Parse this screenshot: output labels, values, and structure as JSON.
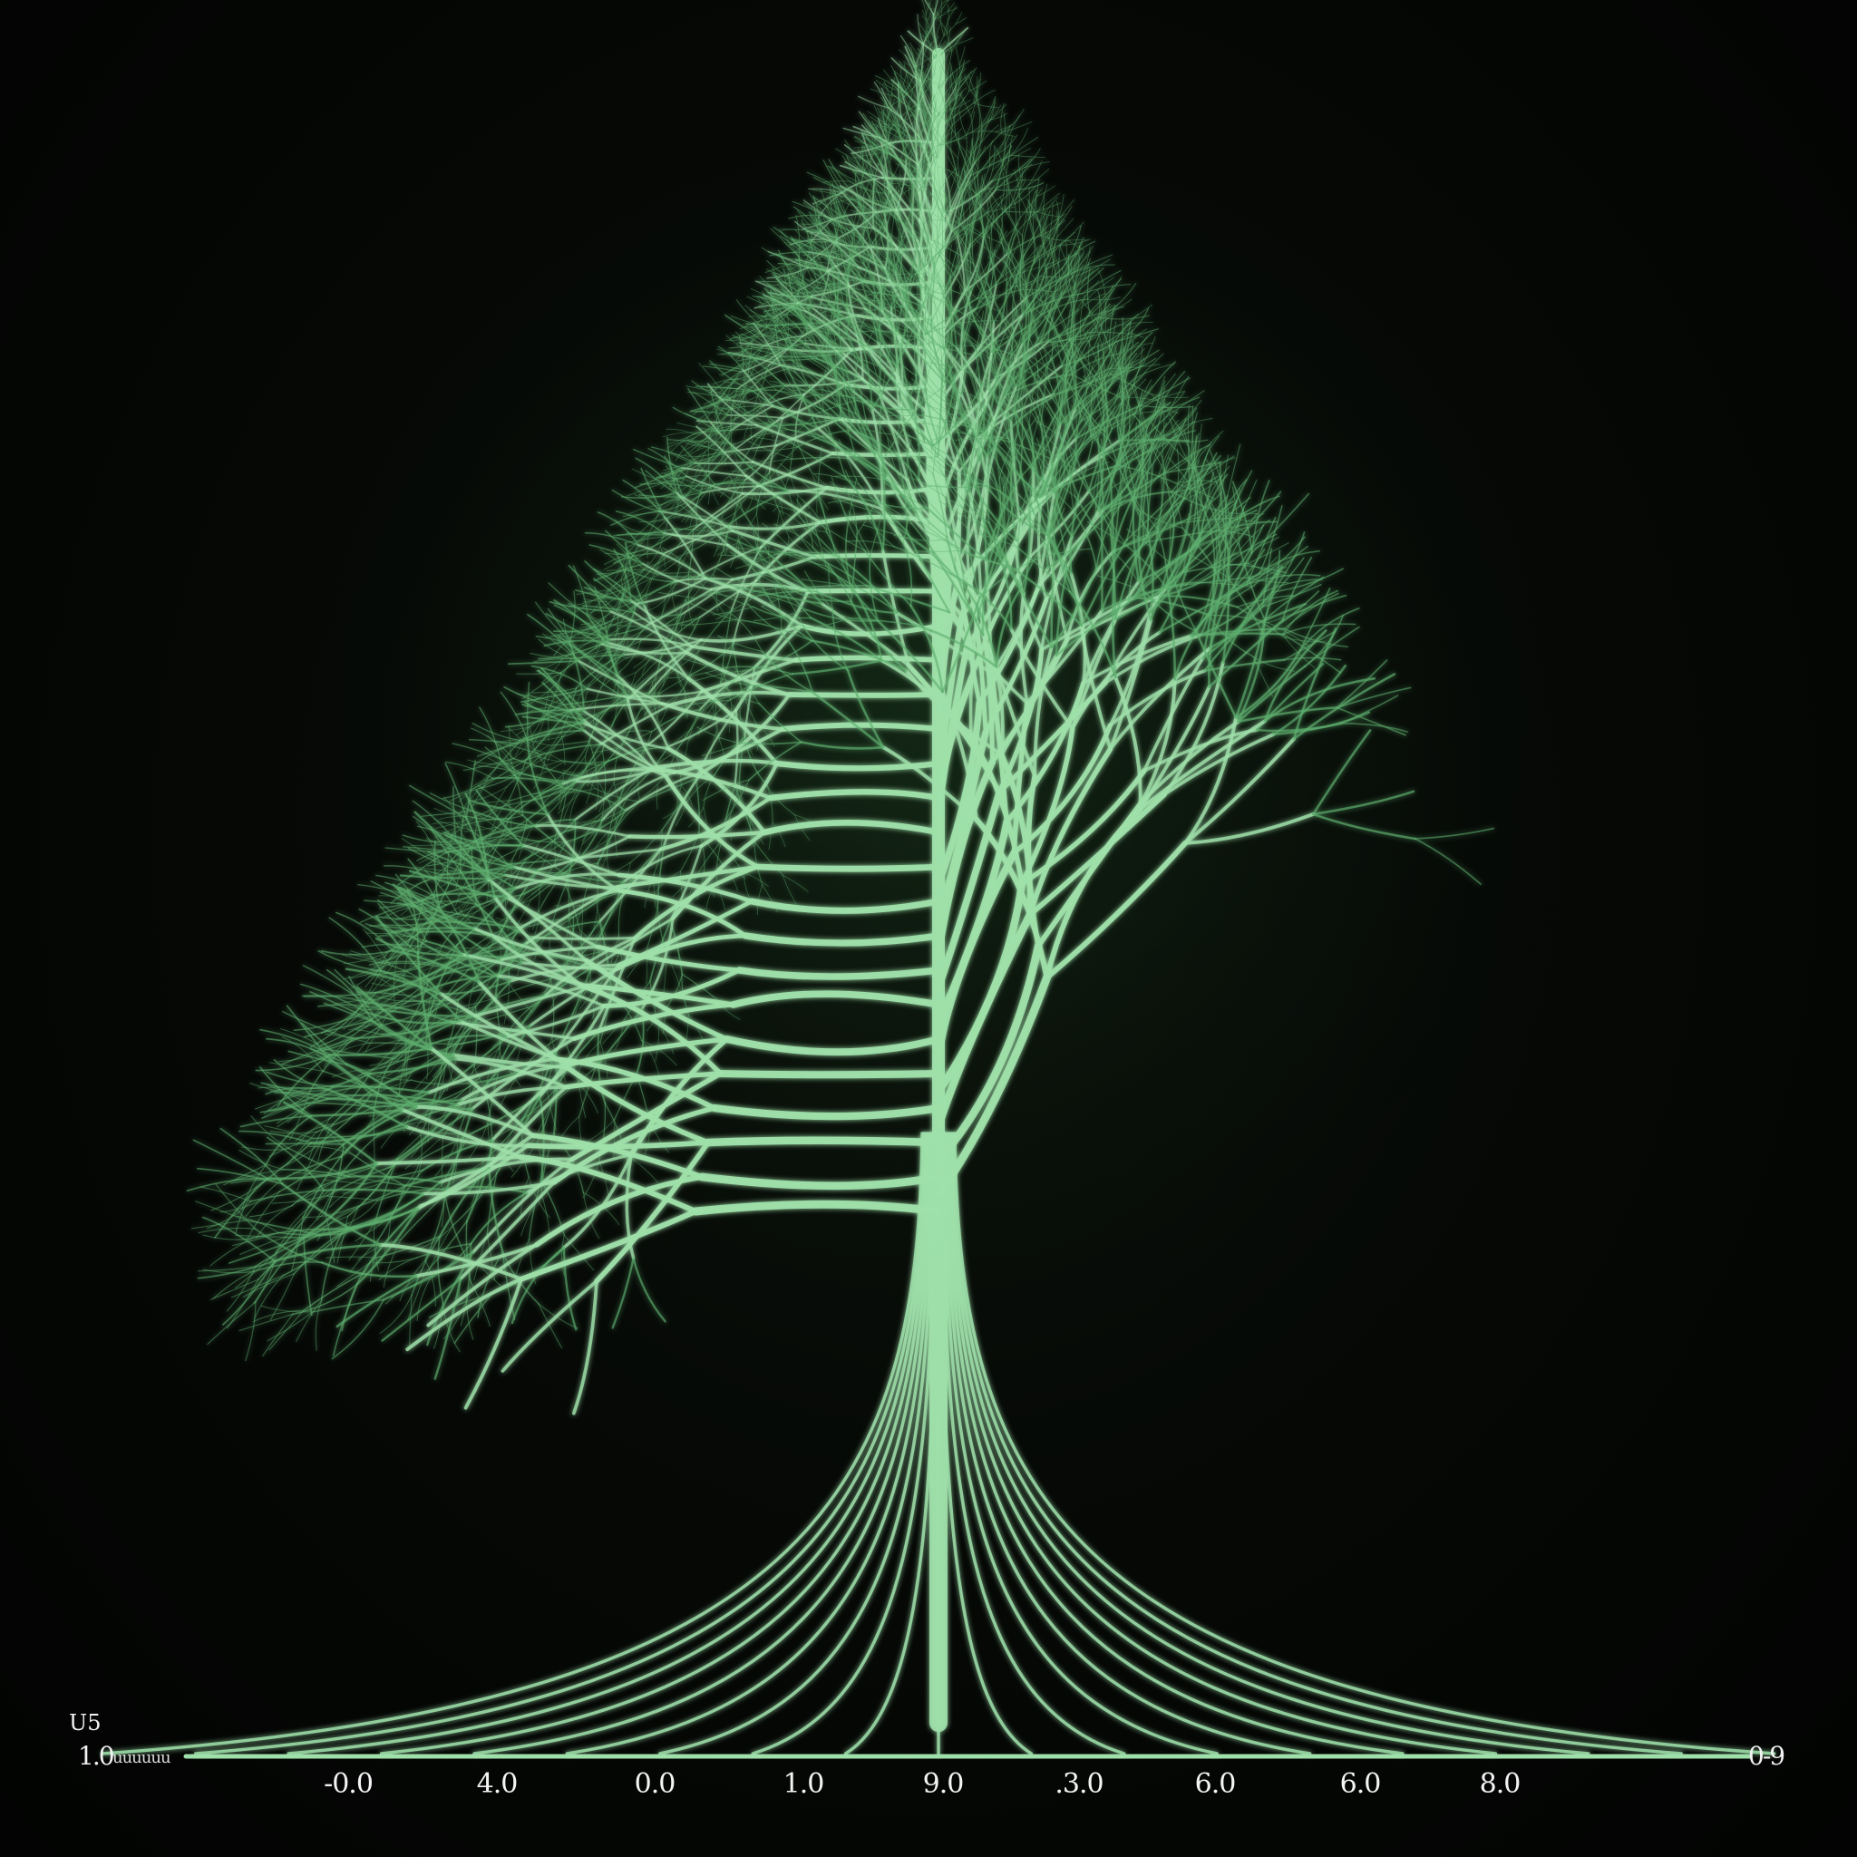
{
  "image": {
    "subject": "glowing-branching-tree",
    "background_color": "#030503",
    "tree_color": "#9fe0aa",
    "tree_glow_color": "#5fb070"
  },
  "axis": {
    "y_label_top": "U5",
    "y_label_bottom": "1.0 ",
    "left_text": "uuuuuu",
    "right_label": "0-9",
    "ticks": [
      "-0.0",
      "4.0",
      "0.0",
      "1.0",
      "9.0",
      ".3.0",
      "6.0",
      "6.0",
      "8.0"
    ]
  }
}
